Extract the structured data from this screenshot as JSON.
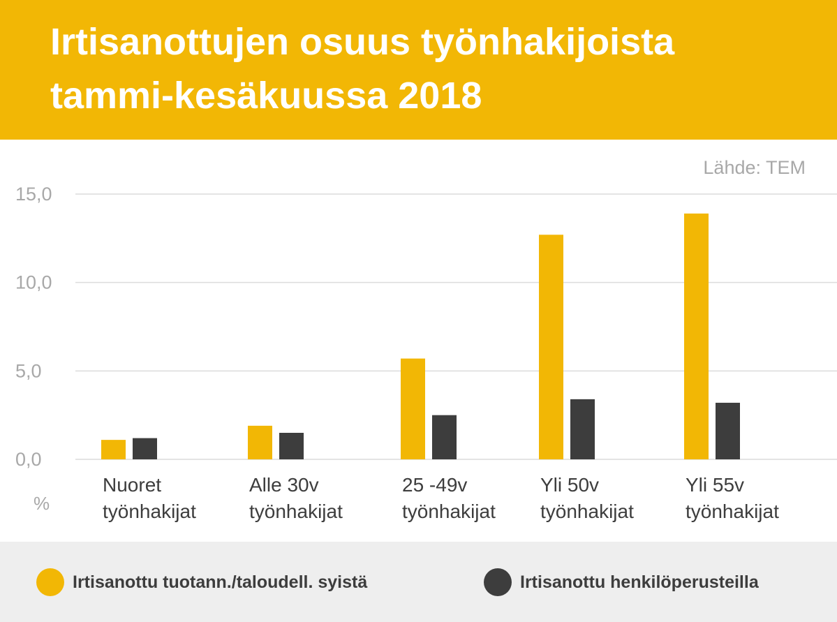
{
  "header": {
    "title_line1": "Irtisanottujen osuus työnhakijoista",
    "title_line2": "tammi-kesäkuussa 2018"
  },
  "source": "Lähde: TEM",
  "colors": {
    "accent": "#f2b705",
    "dark": "#3d3d3d",
    "grid": "#dcdcdc",
    "tick": "#a8a8a8",
    "legend_bg": "#eeeeee"
  },
  "chart_data": {
    "type": "bar",
    "ylabel": "%",
    "ylim": [
      0,
      15
    ],
    "yticks": [
      "0,0",
      "5,0",
      "10,0",
      "15,0"
    ],
    "ytick_values": [
      0,
      5,
      10,
      15
    ],
    "grid": true,
    "legend_position": "bottom",
    "categories": [
      [
        "Nuoret",
        "työnhakijat"
      ],
      [
        "Alle 30v",
        "työnhakijat"
      ],
      [
        "25 -49v",
        "työnhakijat"
      ],
      [
        "Yli 50v",
        "työnhakijat"
      ],
      [
        "Yli 55v",
        "työnhakijat"
      ]
    ],
    "series": [
      {
        "name": "Irtisanottu tuotann./taloudell. syistä",
        "color": "#f2b705",
        "values": [
          1.1,
          1.9,
          5.7,
          12.7,
          13.9
        ]
      },
      {
        "name": "Irtisanottu henkilöperusteilla",
        "color": "#3d3d3d",
        "values": [
          1.2,
          1.5,
          2.5,
          3.4,
          3.2
        ]
      }
    ]
  },
  "legend": {
    "items": [
      {
        "label": "Irtisanottu tuotann./taloudell. syistä",
        "color": "#f2b705"
      },
      {
        "label": "Irtisanottu henkilöperusteilla",
        "color": "#3d3d3d"
      }
    ]
  }
}
